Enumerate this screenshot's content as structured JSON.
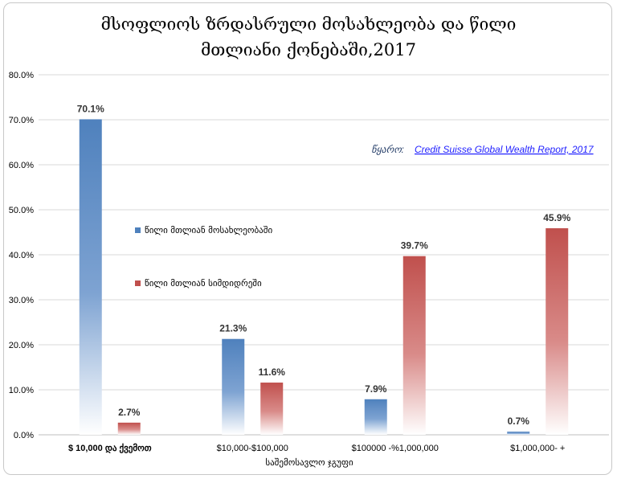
{
  "chart_data": {
    "type": "bar",
    "title": "მსოფლიოს ზრდასრული მოსახლეობა  და წილი მთლიანი ქონებაში,2017",
    "title_lines": [
      "მსოფლიოს ზრდასრული მოსახლეობა  და წილი",
      "მთლიანი ქონებაში,2017"
    ],
    "xlabel": "საშემოსავლო ჯგუფი",
    "ylabel": "",
    "categories": [
      "$ 10,000 და ქვემოთ",
      "$10,000-$100,000",
      "$100000 -%1,000,000",
      "$1,000,000- +"
    ],
    "series": [
      {
        "name": "წილი მთლიან მოსახლეობაში",
        "values": [
          70.1,
          21.3,
          7.9,
          0.7
        ],
        "labels": [
          "70.1%",
          "21.3%",
          "7.9%",
          "0.7%"
        ],
        "color": "#4f81bd"
      },
      {
        "name": "წილი მთლიან სიმდიდრეში",
        "values": [
          2.7,
          11.6,
          39.7,
          45.9
        ],
        "labels": [
          "2.7%",
          "11.6%",
          "39.7%",
          "45.9%"
        ],
        "color": "#c0504d"
      }
    ],
    "ylim": [
      0,
      80
    ],
    "yticks": [
      0,
      10,
      20,
      30,
      40,
      50,
      60,
      70,
      80
    ],
    "ytick_labels": [
      "0.0%",
      "10.0%",
      "20.0%",
      "30.0%",
      "40.0%",
      "50.0%",
      "60.0%",
      "70.0%",
      "80.0%"
    ],
    "grid": true,
    "legend_position": "middle-left",
    "source_label": "წყარო:",
    "source_link": "Credit Suisse Global Wealth Report, 2017"
  }
}
